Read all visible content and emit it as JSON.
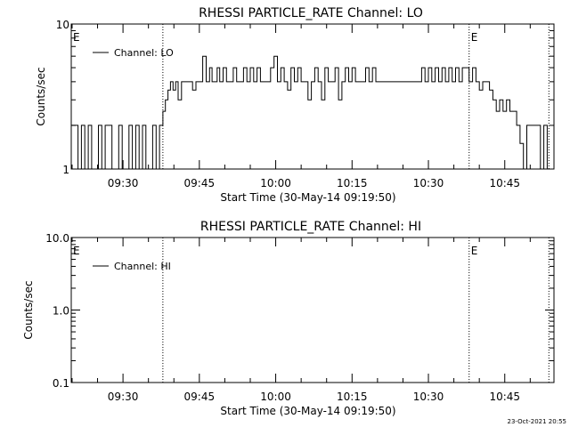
{
  "chart_data": [
    {
      "type": "line",
      "title": "RHESSI PARTICLE_RATE Channel: LO",
      "xlabel": "Start Time (30-May-14 09:19:50)",
      "ylabel": "Counts/sec",
      "yscale": "log",
      "ylim": [
        1,
        10
      ],
      "xlim": [
        "09:19:50",
        "10:54:40"
      ],
      "y_tick_labels": [
        "1",
        "10"
      ],
      "x_tick_labels": [
        "09:30",
        "09:45",
        "10:00",
        "10:15",
        "10:30",
        "10:45"
      ],
      "legend": {
        "placement": "top-left",
        "entries": [
          "Channel: LO"
        ]
      },
      "annotations": [
        {
          "label": "E",
          "x": "09:19:50"
        },
        {
          "label": "E",
          "x": "10:38:00"
        }
      ],
      "vlines_dotted": [
        "09:37:50",
        "10:38:00",
        "10:53:40"
      ],
      "series": [
        {
          "name": "Channel: LO",
          "x": [
            "09:19:50",
            "09:20:30",
            "09:21:10",
            "09:21:50",
            "09:22:30",
            "09:23:10",
            "09:23:50",
            "09:24:30",
            "09:25:10",
            "09:25:50",
            "09:26:30",
            "09:27:10",
            "09:27:50",
            "09:28:30",
            "09:29:10",
            "09:29:50",
            "09:30:30",
            "09:31:10",
            "09:31:50",
            "09:32:30",
            "09:33:10",
            "09:33:50",
            "09:34:30",
            "09:35:10",
            "09:35:50",
            "09:36:30",
            "09:37:10",
            "09:37:50",
            "09:38:20",
            "09:38:50",
            "09:39:20",
            "09:39:50",
            "09:40:20",
            "09:40:50",
            "09:41:30",
            "09:42:10",
            "09:43:00",
            "09:43:40",
            "09:44:20",
            "09:45:00",
            "09:45:40",
            "09:46:20",
            "09:47:00",
            "09:47:30",
            "09:48:00",
            "09:48:30",
            "09:49:00",
            "09:49:40",
            "09:50:20",
            "09:51:00",
            "09:51:40",
            "09:52:20",
            "09:53:00",
            "09:53:40",
            "09:54:20",
            "09:55:00",
            "09:55:40",
            "09:56:20",
            "09:57:00",
            "09:57:40",
            "09:58:20",
            "09:59:00",
            "09:59:40",
            "10:00:20",
            "10:01:00",
            "10:01:40",
            "10:02:20",
            "10:03:00",
            "10:03:40",
            "10:04:20",
            "10:05:00",
            "10:05:40",
            "10:06:20",
            "10:07:00",
            "10:07:40",
            "10:08:20",
            "10:09:00",
            "10:09:40",
            "10:10:20",
            "10:11:00",
            "10:11:40",
            "10:12:20",
            "10:13:00",
            "10:13:40",
            "10:14:20",
            "10:15:00",
            "10:15:40",
            "10:16:20",
            "10:17:00",
            "10:17:40",
            "10:18:20",
            "10:19:00",
            "10:19:40",
            "10:20:20",
            "10:21:00",
            "10:22:00",
            "10:23:00",
            "10:24:00",
            "10:25:00",
            "10:26:00",
            "10:27:00",
            "10:28:00",
            "10:28:40",
            "10:29:20",
            "10:30:00",
            "10:30:40",
            "10:31:20",
            "10:32:00",
            "10:32:40",
            "10:33:20",
            "10:34:00",
            "10:34:40",
            "10:35:20",
            "10:36:00",
            "10:36:40",
            "10:37:20",
            "10:38:00",
            "10:38:40",
            "10:39:20",
            "10:40:00",
            "10:40:40",
            "10:41:20",
            "10:42:00",
            "10:42:40",
            "10:43:20",
            "10:44:00",
            "10:44:40",
            "10:45:20",
            "10:46:00",
            "10:46:40",
            "10:47:20",
            "10:48:00",
            "10:48:40",
            "10:49:20",
            "10:50:00",
            "10:50:40",
            "10:51:20",
            "10:52:00",
            "10:52:40",
            "10:53:20",
            "10:53:40"
          ],
          "values": [
            2,
            2,
            1,
            2,
            1,
            2,
            1,
            1,
            2,
            1,
            2,
            2,
            1,
            1,
            2,
            1,
            1,
            2,
            1,
            2,
            1,
            2,
            1,
            1,
            2,
            1,
            2,
            2.5,
            3,
            3.5,
            4,
            3.5,
            4,
            3,
            4,
            4,
            4,
            3.5,
            4,
            4,
            6,
            4,
            5,
            4,
            4,
            5,
            4,
            5,
            4,
            4,
            5,
            4,
            4,
            5,
            4,
            5,
            4,
            5,
            4,
            4,
            4,
            5,
            6,
            4,
            5,
            4,
            3.5,
            5,
            4,
            5,
            4,
            4,
            3,
            4,
            5,
            4,
            3,
            5,
            4,
            4,
            5,
            3,
            4,
            5,
            4,
            5,
            4,
            4,
            4,
            5,
            4,
            5,
            4,
            4,
            4,
            4,
            4,
            4,
            4,
            4,
            4,
            4,
            5,
            4,
            5,
            4,
            5,
            4,
            5,
            4,
            5,
            4,
            5,
            4,
            5,
            5,
            4,
            5,
            4,
            3.5,
            4,
            4,
            3.5,
            3,
            2.5,
            3,
            2.5,
            3,
            2.5,
            2.5,
            2,
            1.5,
            1,
            2,
            2,
            2,
            2,
            1,
            2,
            1,
            1
          ]
        }
      ]
    },
    {
      "type": "line",
      "title": "RHESSI PARTICLE_RATE Channel: HI",
      "xlabel": "Start Time (30-May-14 09:19:50)",
      "ylabel": "Counts/sec",
      "yscale": "log",
      "ylim": [
        0.1,
        10
      ],
      "xlim": [
        "09:19:50",
        "10:54:40"
      ],
      "y_tick_labels": [
        "0.1",
        "1.0",
        "10.0"
      ],
      "x_tick_labels": [
        "09:30",
        "09:45",
        "10:00",
        "10:15",
        "10:30",
        "10:45"
      ],
      "legend": {
        "placement": "top-left",
        "entries": [
          "Channel: HI"
        ]
      },
      "annotations": [
        {
          "label": "E",
          "x": "09:19:50"
        },
        {
          "label": "E",
          "x": "10:38:00"
        }
      ],
      "vlines_dotted": [
        "09:37:50",
        "10:38:00",
        "10:53:40"
      ],
      "series": [
        {
          "name": "Channel: HI",
          "x": [],
          "values": []
        }
      ]
    }
  ],
  "timestamp": "23-Oct-2021 20:55"
}
